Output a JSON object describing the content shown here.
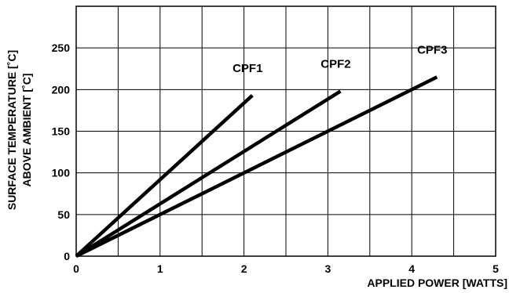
{
  "chart_data": {
    "type": "line",
    "title": "",
    "xlabel": "APPLIED POWER [WATTS]",
    "ylabel_lines": [
      "SURFACE TEMPERATURE [˚C]",
      "ABOVE AMBIENT [˚C]"
    ],
    "xlim": [
      0,
      5
    ],
    "ylim": [
      0,
      300
    ],
    "xticks": [
      "0",
      "1",
      "2",
      "3",
      "4",
      "5"
    ],
    "yticks": [
      "0",
      "50",
      "100",
      "150",
      "200",
      "250"
    ],
    "grid": true,
    "x_grid_step": 0.5,
    "y_grid_step": 50,
    "series": [
      {
        "name": "CPF1",
        "x": [
          0,
          2.1
        ],
        "y": [
          0,
          193
        ]
      },
      {
        "name": "CPF2",
        "x": [
          0,
          3.15
        ],
        "y": [
          0,
          198
        ]
      },
      {
        "name": "CPF3",
        "x": [
          0,
          4.3
        ],
        "y": [
          0,
          215
        ]
      }
    ],
    "line_color": "#000000"
  }
}
